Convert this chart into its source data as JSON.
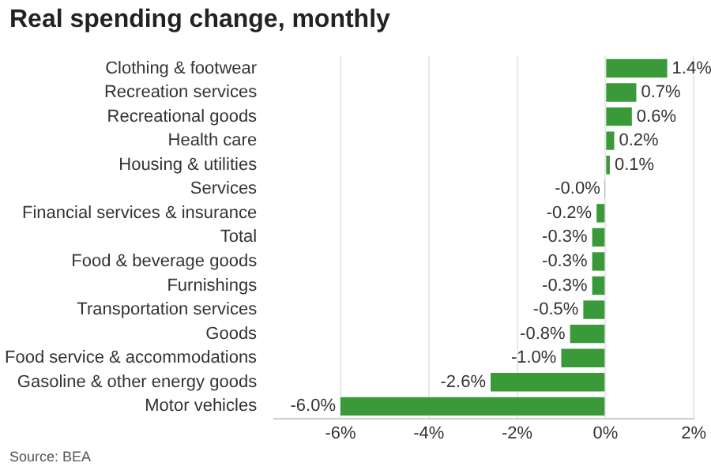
{
  "chart_data": {
    "type": "bar",
    "orientation": "horizontal",
    "title": "Real spending change, monthly",
    "categories": [
      "Clothing & footwear",
      "Recreation services",
      "Recreational goods",
      "Health care",
      "Housing & utilities",
      "Services",
      "Financial services & insurance",
      "Total",
      "Food & beverage goods",
      "Furnishings",
      "Transportation services",
      "Goods",
      "Food service & accommodations",
      "Gasoline & other energy goods",
      "Motor vehicles"
    ],
    "values": [
      1.4,
      0.7,
      0.6,
      0.2,
      0.1,
      -0.01,
      -0.2,
      -0.3,
      -0.3,
      -0.3,
      -0.5,
      -0.8,
      -1.0,
      -2.6,
      -6.0
    ],
    "value_labels": [
      "1.4%",
      "0.7%",
      "0.6%",
      "0.2%",
      "0.1%",
      "-0.0%",
      "-0.2%",
      "-0.3%",
      "-0.3%",
      "-0.3%",
      "-0.5%",
      "-0.8%",
      "-1.0%",
      "-2.6%",
      "-6.0%"
    ],
    "color": "#3a9a3a",
    "xlim": [
      -7.5,
      2
    ],
    "xticks": [
      {
        "value": -6,
        "label": "-6%"
      },
      {
        "value": -4,
        "label": "-4%"
      },
      {
        "value": -2,
        "label": "-2%"
      },
      {
        "value": 0,
        "label": "0%"
      },
      {
        "value": 2,
        "label": "2%"
      }
    ],
    "grid": "x",
    "annotations": [
      "Source: BEA"
    ]
  }
}
